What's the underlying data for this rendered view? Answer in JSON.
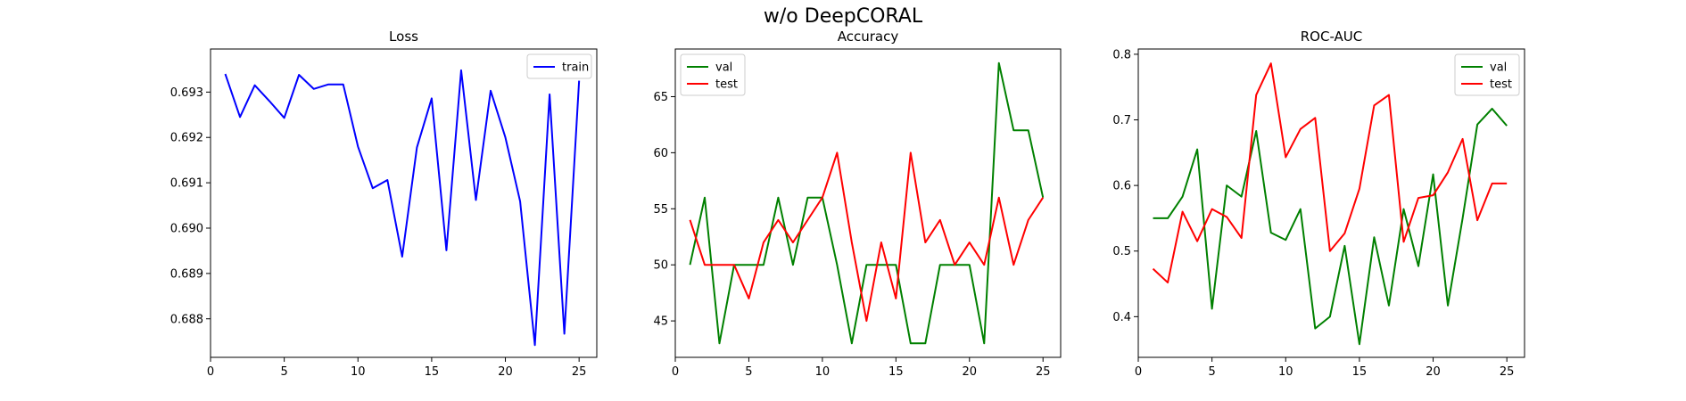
{
  "figure": {
    "suptitle": "w/o DeepCORAL"
  },
  "chart_data": [
    {
      "type": "line",
      "title": "Loss",
      "xlabel": "",
      "ylabel": "",
      "x": [
        1,
        2,
        3,
        4,
        5,
        6,
        7,
        8,
        9,
        10,
        11,
        12,
        13,
        14,
        15,
        16,
        17,
        18,
        19,
        20,
        21,
        22,
        23,
        24,
        25
      ],
      "xlim": [
        0,
        26.2
      ],
      "ylim": [
        0.68715,
        0.69395
      ],
      "xticks": [
        0,
        5,
        10,
        15,
        20,
        25
      ],
      "yticks": [
        0.688,
        0.689,
        0.69,
        0.691,
        0.692,
        0.693
      ],
      "yticklabels": [
        "0.688",
        "0.689",
        "0.690",
        "0.691",
        "0.692",
        "0.693"
      ],
      "grid": false,
      "legend": "upper right",
      "series": [
        {
          "name": "train",
          "color": "#0000ff",
          "values": [
            0.6934,
            0.69245,
            0.69315,
            0.6928,
            0.69243,
            0.69338,
            0.69307,
            0.69317,
            0.69317,
            0.6918,
            0.69088,
            0.69106,
            0.68937,
            0.69178,
            0.69286,
            0.68951,
            0.69348,
            0.69062,
            0.69303,
            0.692,
            0.69059,
            0.68742,
            0.69295,
            0.68767,
            0.69325
          ]
        }
      ]
    },
    {
      "type": "line",
      "title": "Accuracy",
      "xlabel": "",
      "ylabel": "",
      "x": [
        1,
        2,
        3,
        4,
        5,
        6,
        7,
        8,
        9,
        10,
        11,
        12,
        13,
        14,
        15,
        16,
        17,
        18,
        19,
        20,
        21,
        22,
        23,
        24,
        25
      ],
      "xlim": [
        0,
        26.2
      ],
      "ylim": [
        41.75,
        69.25
      ],
      "xticks": [
        0,
        5,
        10,
        15,
        20,
        25
      ],
      "yticks": [
        45,
        50,
        55,
        60,
        65
      ],
      "yticklabels": [
        "45",
        "50",
        "55",
        "60",
        "65"
      ],
      "grid": false,
      "legend": "upper left",
      "series": [
        {
          "name": "val",
          "color": "#008000",
          "values": [
            50,
            56,
            43,
            50,
            50,
            50,
            56,
            50,
            56,
            56,
            50,
            43,
            50,
            50,
            50,
            43,
            43,
            50,
            50,
            50,
            43,
            68,
            62,
            62,
            56
          ]
        },
        {
          "name": "test",
          "color": "#ff0000",
          "values": [
            54,
            50,
            50,
            50,
            47,
            52,
            54,
            52,
            54,
            56,
            60,
            52,
            45,
            52,
            47,
            60,
            52,
            54,
            50,
            52,
            50,
            56,
            50,
            54,
            56
          ]
        }
      ]
    },
    {
      "type": "line",
      "title": "ROC-AUC",
      "xlabel": "",
      "ylabel": "",
      "x": [
        1,
        2,
        3,
        4,
        5,
        6,
        7,
        8,
        9,
        10,
        11,
        12,
        13,
        14,
        15,
        16,
        17,
        18,
        19,
        20,
        21,
        22,
        23,
        24,
        25
      ],
      "xlim": [
        0,
        26.2
      ],
      "ylim": [
        0.338,
        0.808
      ],
      "xticks": [
        0,
        5,
        10,
        15,
        20,
        25
      ],
      "yticks": [
        0.4,
        0.5,
        0.6,
        0.7,
        0.8
      ],
      "yticklabels": [
        "0.4",
        "0.5",
        "0.6",
        "0.7",
        "0.8"
      ],
      "grid": false,
      "legend": "upper right",
      "series": [
        {
          "name": "val",
          "color": "#008000",
          "values": [
            0.55,
            0.55,
            0.583,
            0.655,
            0.412,
            0.6,
            0.583,
            0.683,
            0.528,
            0.517,
            0.564,
            0.382,
            0.4,
            0.508,
            0.358,
            0.521,
            0.417,
            0.564,
            0.477,
            0.617,
            0.417,
            0.55,
            0.693,
            0.717,
            0.691
          ]
        },
        {
          "name": "test",
          "color": "#ff0000",
          "values": [
            0.473,
            0.452,
            0.56,
            0.515,
            0.564,
            0.552,
            0.52,
            0.738,
            0.786,
            0.643,
            0.686,
            0.703,
            0.5,
            0.527,
            0.595,
            0.722,
            0.738,
            0.514,
            0.581,
            0.585,
            0.62,
            0.671,
            0.547,
            0.603,
            0.603
          ]
        }
      ]
    }
  ]
}
